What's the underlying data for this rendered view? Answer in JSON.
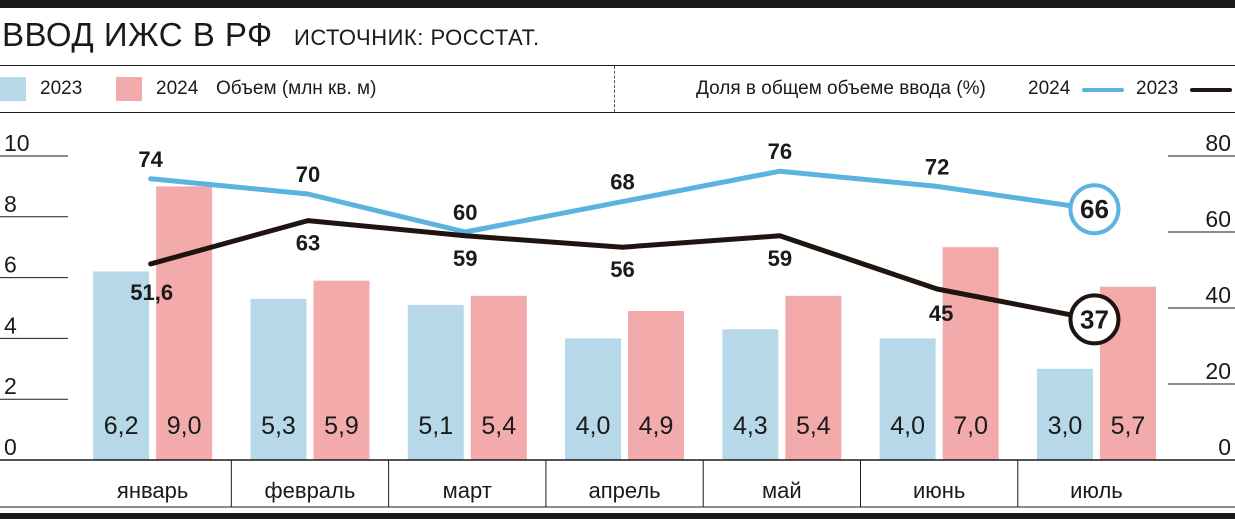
{
  "header": {
    "title": "ВВОД ИЖС В РФ",
    "source": "ИСТОЧНИК: РОССТАТ."
  },
  "legend": {
    "bar_2023": "2023",
    "bar_2024": "2024",
    "bar_metric": "Объем (млн кв. м)",
    "line_metric": "Доля в общем объеме ввода (%)",
    "line_2024": "2024",
    "line_2023": "2023"
  },
  "colors": {
    "bar_2023": "#b7d8e8",
    "bar_2024": "#f3aaaa",
    "line_2024": "#5cb3e0",
    "line_2023": "#1f140f"
  },
  "chart_data": {
    "type": "bar",
    "categories": [
      "январь",
      "февраль",
      "март",
      "апрель",
      "май",
      "июнь",
      "июль"
    ],
    "bars": {
      "axis": "left",
      "ylim": [
        0,
        10
      ],
      "yticks": [
        "0",
        "2",
        "4",
        "6",
        "8",
        "10"
      ],
      "series": [
        {
          "name": "2023",
          "values": [
            6.2,
            5.3,
            5.1,
            4.0,
            4.3,
            4.0,
            3.0
          ],
          "labels": [
            "6,2",
            "5,3",
            "5,1",
            "4,0",
            "4,3",
            "4,0",
            "3,0"
          ]
        },
        {
          "name": "2024",
          "values": [
            9.0,
            5.9,
            5.4,
            4.9,
            5.4,
            7.0,
            5.7
          ],
          "labels": [
            "9,0",
            "5,9",
            "5,4",
            "4,9",
            "5,4",
            "7,0",
            "5,7"
          ]
        }
      ]
    },
    "lines": {
      "axis": "right",
      "ylim": [
        0,
        80
      ],
      "yticks": [
        "0",
        "20",
        "40",
        "60",
        "80"
      ],
      "series": [
        {
          "name": "2024",
          "values": [
            74,
            70,
            60,
            68,
            76,
            72,
            66
          ],
          "labels": [
            "74",
            "70",
            "60",
            "68",
            "76",
            "72",
            "66"
          ]
        },
        {
          "name": "2023",
          "values": [
            51.6,
            63,
            59,
            56,
            59,
            45,
            37
          ],
          "labels": [
            "51,6",
            "63",
            "59",
            "56",
            "59",
            "45",
            "37"
          ]
        }
      ]
    }
  }
}
